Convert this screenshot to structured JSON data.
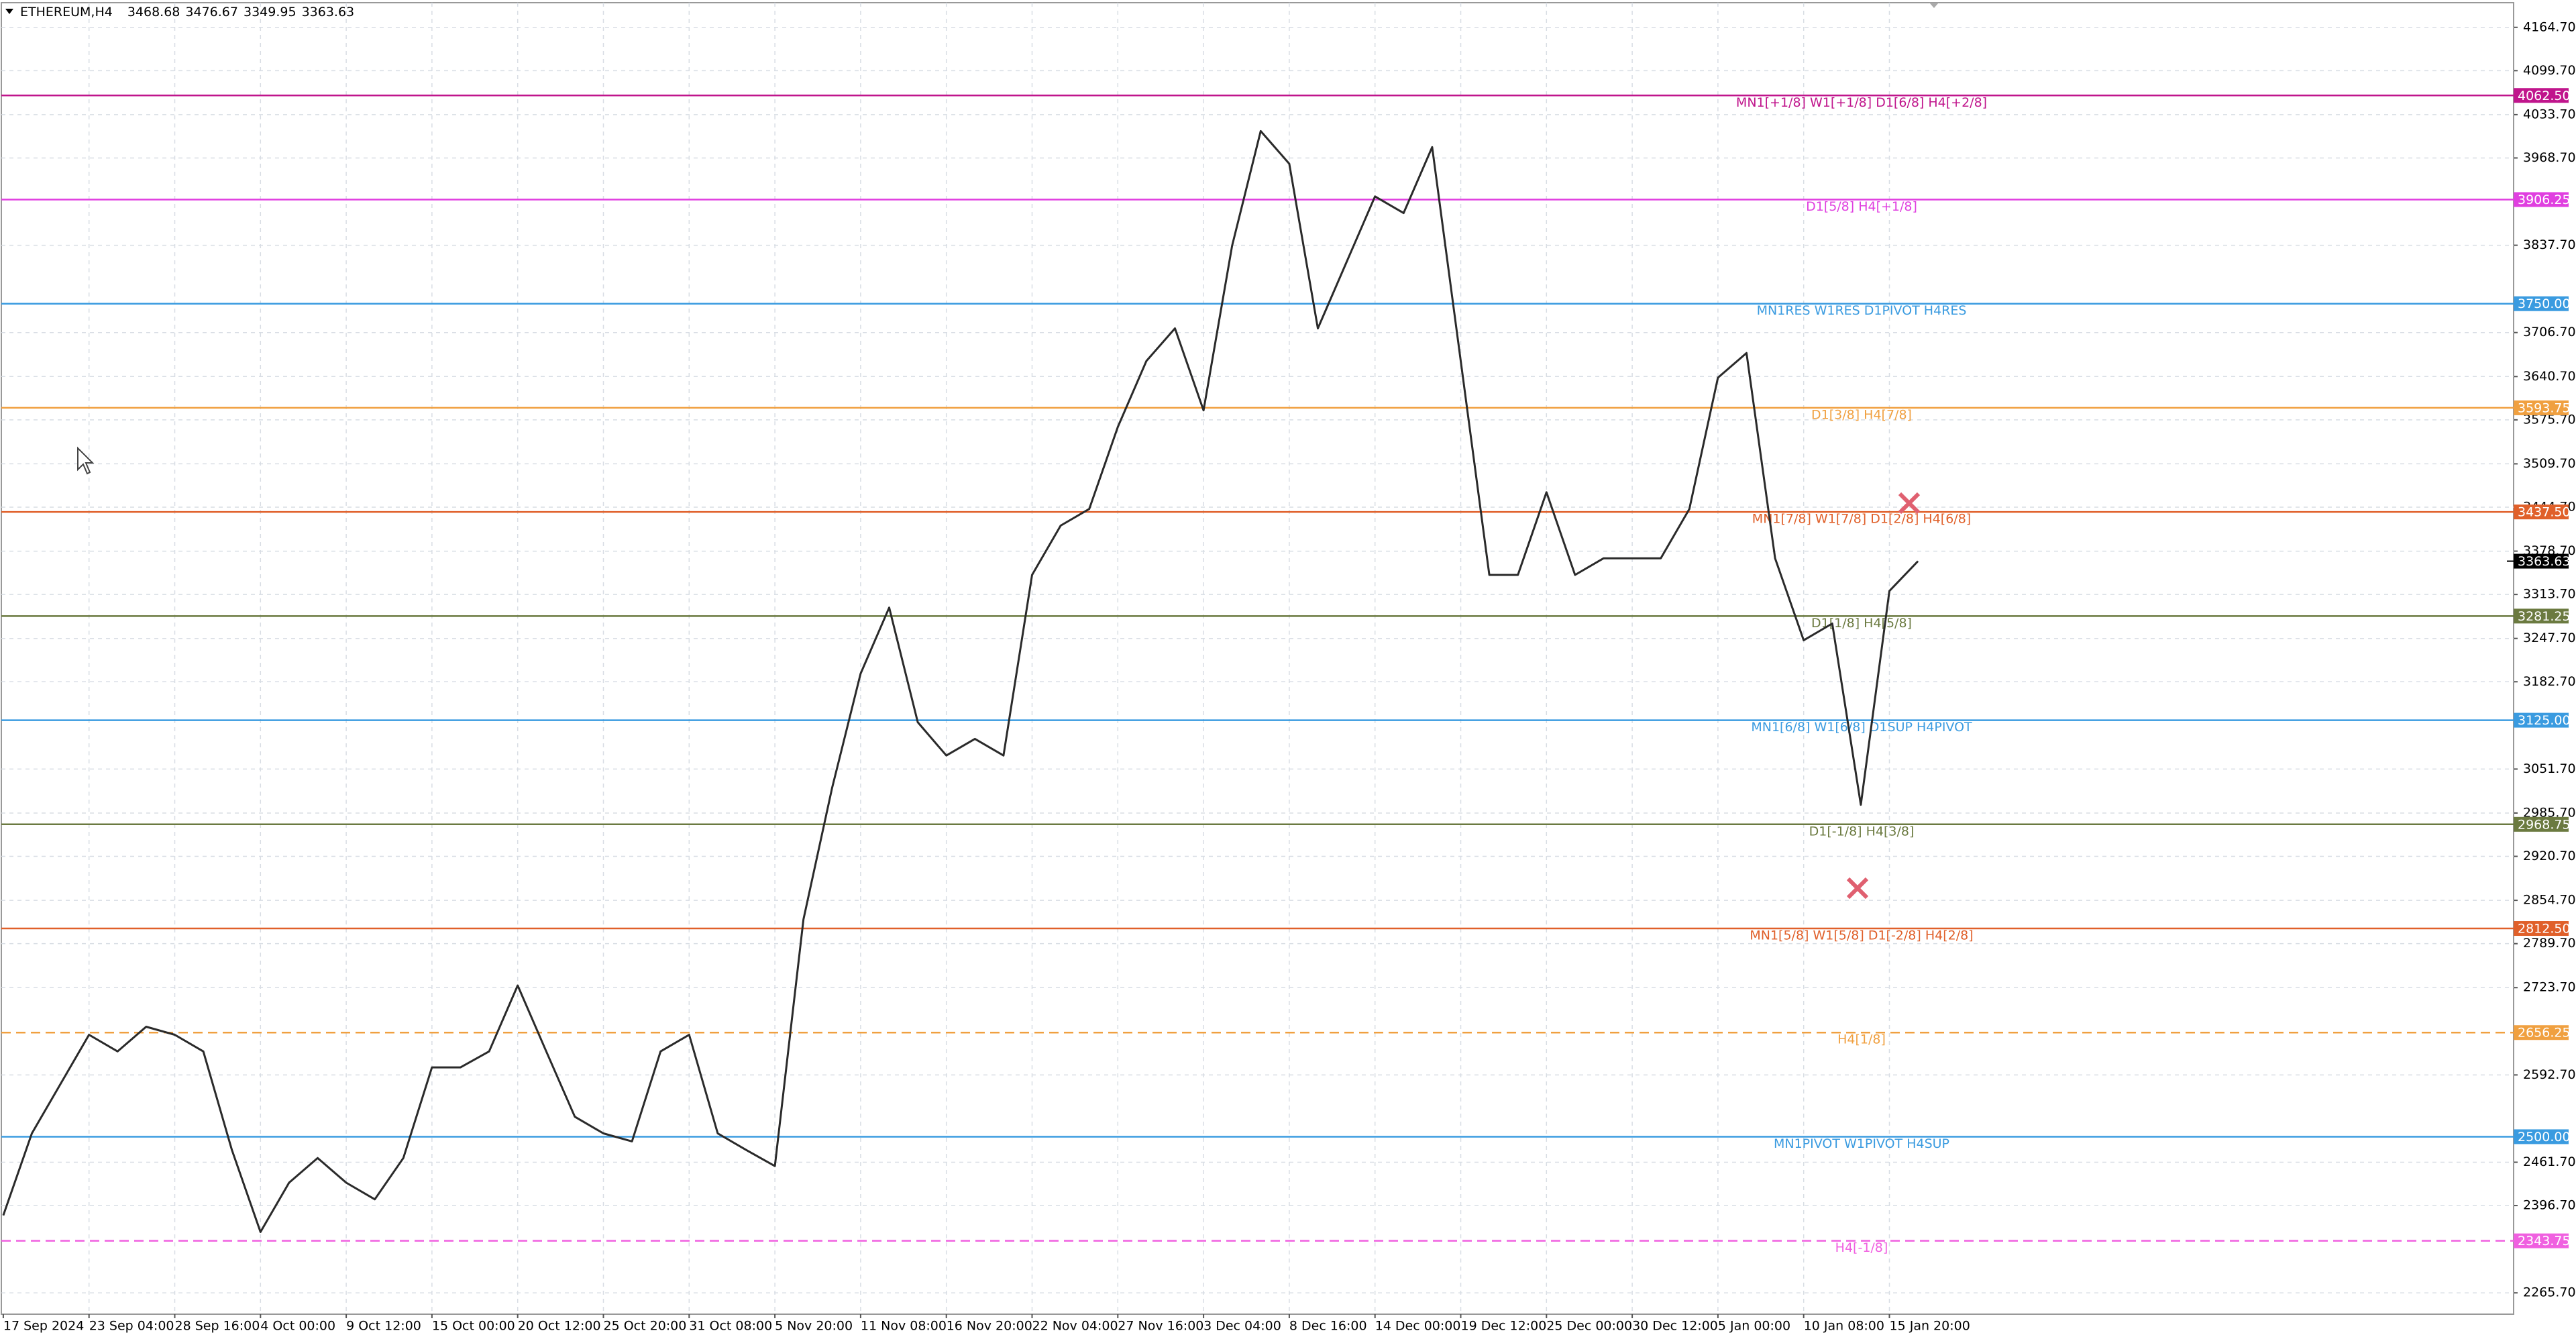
{
  "chart_data": {
    "type": "line",
    "title": "ETHEREUM,H4",
    "ohlc": [
      3468.68,
      3476.67,
      3349.95,
      3363.63
    ],
    "last_price": 3363.63,
    "categories": [
      "17 Sep 2024",
      null,
      null,
      "23 Sep 04:00",
      null,
      null,
      "28 Sep 16:00",
      null,
      null,
      "4 Oct 00:00",
      null,
      null,
      "9 Oct 12:00",
      null,
      null,
      "15 Oct 00:00",
      null,
      null,
      "20 Oct 12:00",
      null,
      null,
      "25 Oct 20:00",
      null,
      null,
      "31 Oct 08:00",
      null,
      null,
      "5 Nov 20:00",
      null,
      null,
      "11 Nov 08:00",
      null,
      null,
      "16 Nov 20:00",
      null,
      null,
      "22 Nov 04:00",
      null,
      null,
      "27 Nov 16:00",
      null,
      null,
      "3 Dec 04:00",
      null,
      null,
      "8 Dec 16:00",
      null,
      null,
      "14 Dec 00:00",
      null,
      null,
      "19 Dec 12:00",
      null,
      null,
      "25 Dec 00:00",
      null,
      null,
      "30 Dec 12:00",
      null,
      null,
      "5 Jan 00:00",
      null,
      null,
      "10 Jan 08:00",
      null,
      null,
      "15 Jan 20:00",
      null
    ],
    "series": [
      {
        "name": "ETHEREUM",
        "color": "#2a2a2a",
        "values": [
          2382,
          2505,
          2579,
          2653,
          2628,
          2665,
          2653,
          2628,
          2480,
          2357,
          2431,
          2468,
          2431,
          2406,
          2468,
          2604,
          2604,
          2628,
          2727,
          2628,
          2530,
          2505,
          2493,
          2628,
          2653,
          2505,
          2480,
          2456,
          2826,
          3023,
          3195,
          3294,
          3122,
          3072,
          3097,
          3072,
          3343,
          3417,
          3442,
          3565,
          3664,
          3713,
          3590,
          3837,
          4009,
          3960,
          3713,
          3812,
          3911,
          3886,
          3985,
          3664,
          3343,
          3343,
          3467,
          3343,
          3368,
          3368,
          3368,
          3442,
          3639,
          3676,
          3368,
          3245,
          3270,
          2998,
          3319,
          3363.63
        ]
      }
    ],
    "ylim": [
      2233.7,
      4201.7
    ],
    "yticks": [
      {
        "value": 4164.7,
        "label": "4164.70"
      },
      {
        "value": 4099.7,
        "label": "4099.70"
      },
      {
        "value": 4033.7,
        "label": "4033.70"
      },
      {
        "value": 3968.7,
        "label": "3968.70"
      },
      {
        "value": 3837.7,
        "label": "3837.70"
      },
      {
        "value": 3706.7,
        "label": "3706.70"
      },
      {
        "value": 3640.7,
        "label": "3640.70"
      },
      {
        "value": 3575.7,
        "label": "3575.70"
      },
      {
        "value": 3509.7,
        "label": "3509.70"
      },
      {
        "value": 3444.7,
        "label": "3444.70"
      },
      {
        "value": 3378.7,
        "label": "3378.70"
      },
      {
        "value": 3313.7,
        "label": "3313.70"
      },
      {
        "value": 3247.7,
        "label": "3247.70"
      },
      {
        "value": 3182.7,
        "label": "3182.70"
      },
      {
        "value": 3051.7,
        "label": "3051.70"
      },
      {
        "value": 2985.7,
        "label": "2985.70"
      },
      {
        "value": 2920.7,
        "label": "2920.70"
      },
      {
        "value": 2854.7,
        "label": "2854.70"
      },
      {
        "value": 2789.7,
        "label": "2789.70"
      },
      {
        "value": 2723.7,
        "label": "2723.70"
      },
      {
        "value": 2592.7,
        "label": "2592.70"
      },
      {
        "value": 2461.7,
        "label": "2461.70"
      },
      {
        "value": 2396.7,
        "label": "2396.70"
      },
      {
        "value": 2265.7,
        "label": "2265.70"
      }
    ],
    "grid": true,
    "levels": [
      {
        "value": 4062.5,
        "label": "4062.50",
        "name": "MN1[+1/8] W1[+1/8] D1[6/8] H4[+2/8]",
        "color": "#c0158c",
        "style": "solid"
      },
      {
        "value": 3906.25,
        "label": "3906.25",
        "name": "D1[5/8] H4[+1/8]",
        "color": "#e03fe0",
        "style": "solid"
      },
      {
        "value": 3750,
        "label": "3750.00",
        "name": "MN1RES W1RES D1PIVOT H4RES",
        "color": "#3a9be0",
        "style": "solid"
      },
      {
        "value": 3593.75,
        "label": "3593.75",
        "name": "D1[3/8] H4[7/8]",
        "color": "#f0a040",
        "style": "solid"
      },
      {
        "value": 3437.5,
        "label": "3437.50",
        "name": "MN1[7/8] W1[7/8] D1[2/8] H4[6/8]",
        "color": "#e0602a",
        "style": "solid"
      },
      {
        "value": 3281.25,
        "label": "3281.25",
        "name": "D1[1/8] H4[5/8]",
        "color": "#6b7a40",
        "style": "solid"
      },
      {
        "value": 3125,
        "label": "3125.00",
        "name": "MN1[6/8] W1[6/8] D1SUP H4PIVOT",
        "color": "#3a9be0",
        "style": "solid"
      },
      {
        "value": 2968.75,
        "label": "2968.75",
        "name": "D1[-1/8] H4[3/8]",
        "color": "#6b7a40",
        "style": "solid"
      },
      {
        "value": 2812.5,
        "label": "2812.50",
        "name": "MN1[5/8] W1[5/8] D1[-2/8] H4[2/8]",
        "color": "#e0602a",
        "style": "solid"
      },
      {
        "value": 2656.25,
        "label": "2656.25",
        "name": "H4[1/8]",
        "color": "#f0a040",
        "style": "dashed"
      },
      {
        "value": 2500,
        "label": "2500.00",
        "name": "MN1PIVOT W1PIVOT H4SUP",
        "color": "#3a9be0",
        "style": "solid"
      },
      {
        "value": 2343.75,
        "label": "2343.75",
        "name": "H4[-1/8]",
        "color": "#f060e0",
        "style": "dashed"
      }
    ]
  }
}
